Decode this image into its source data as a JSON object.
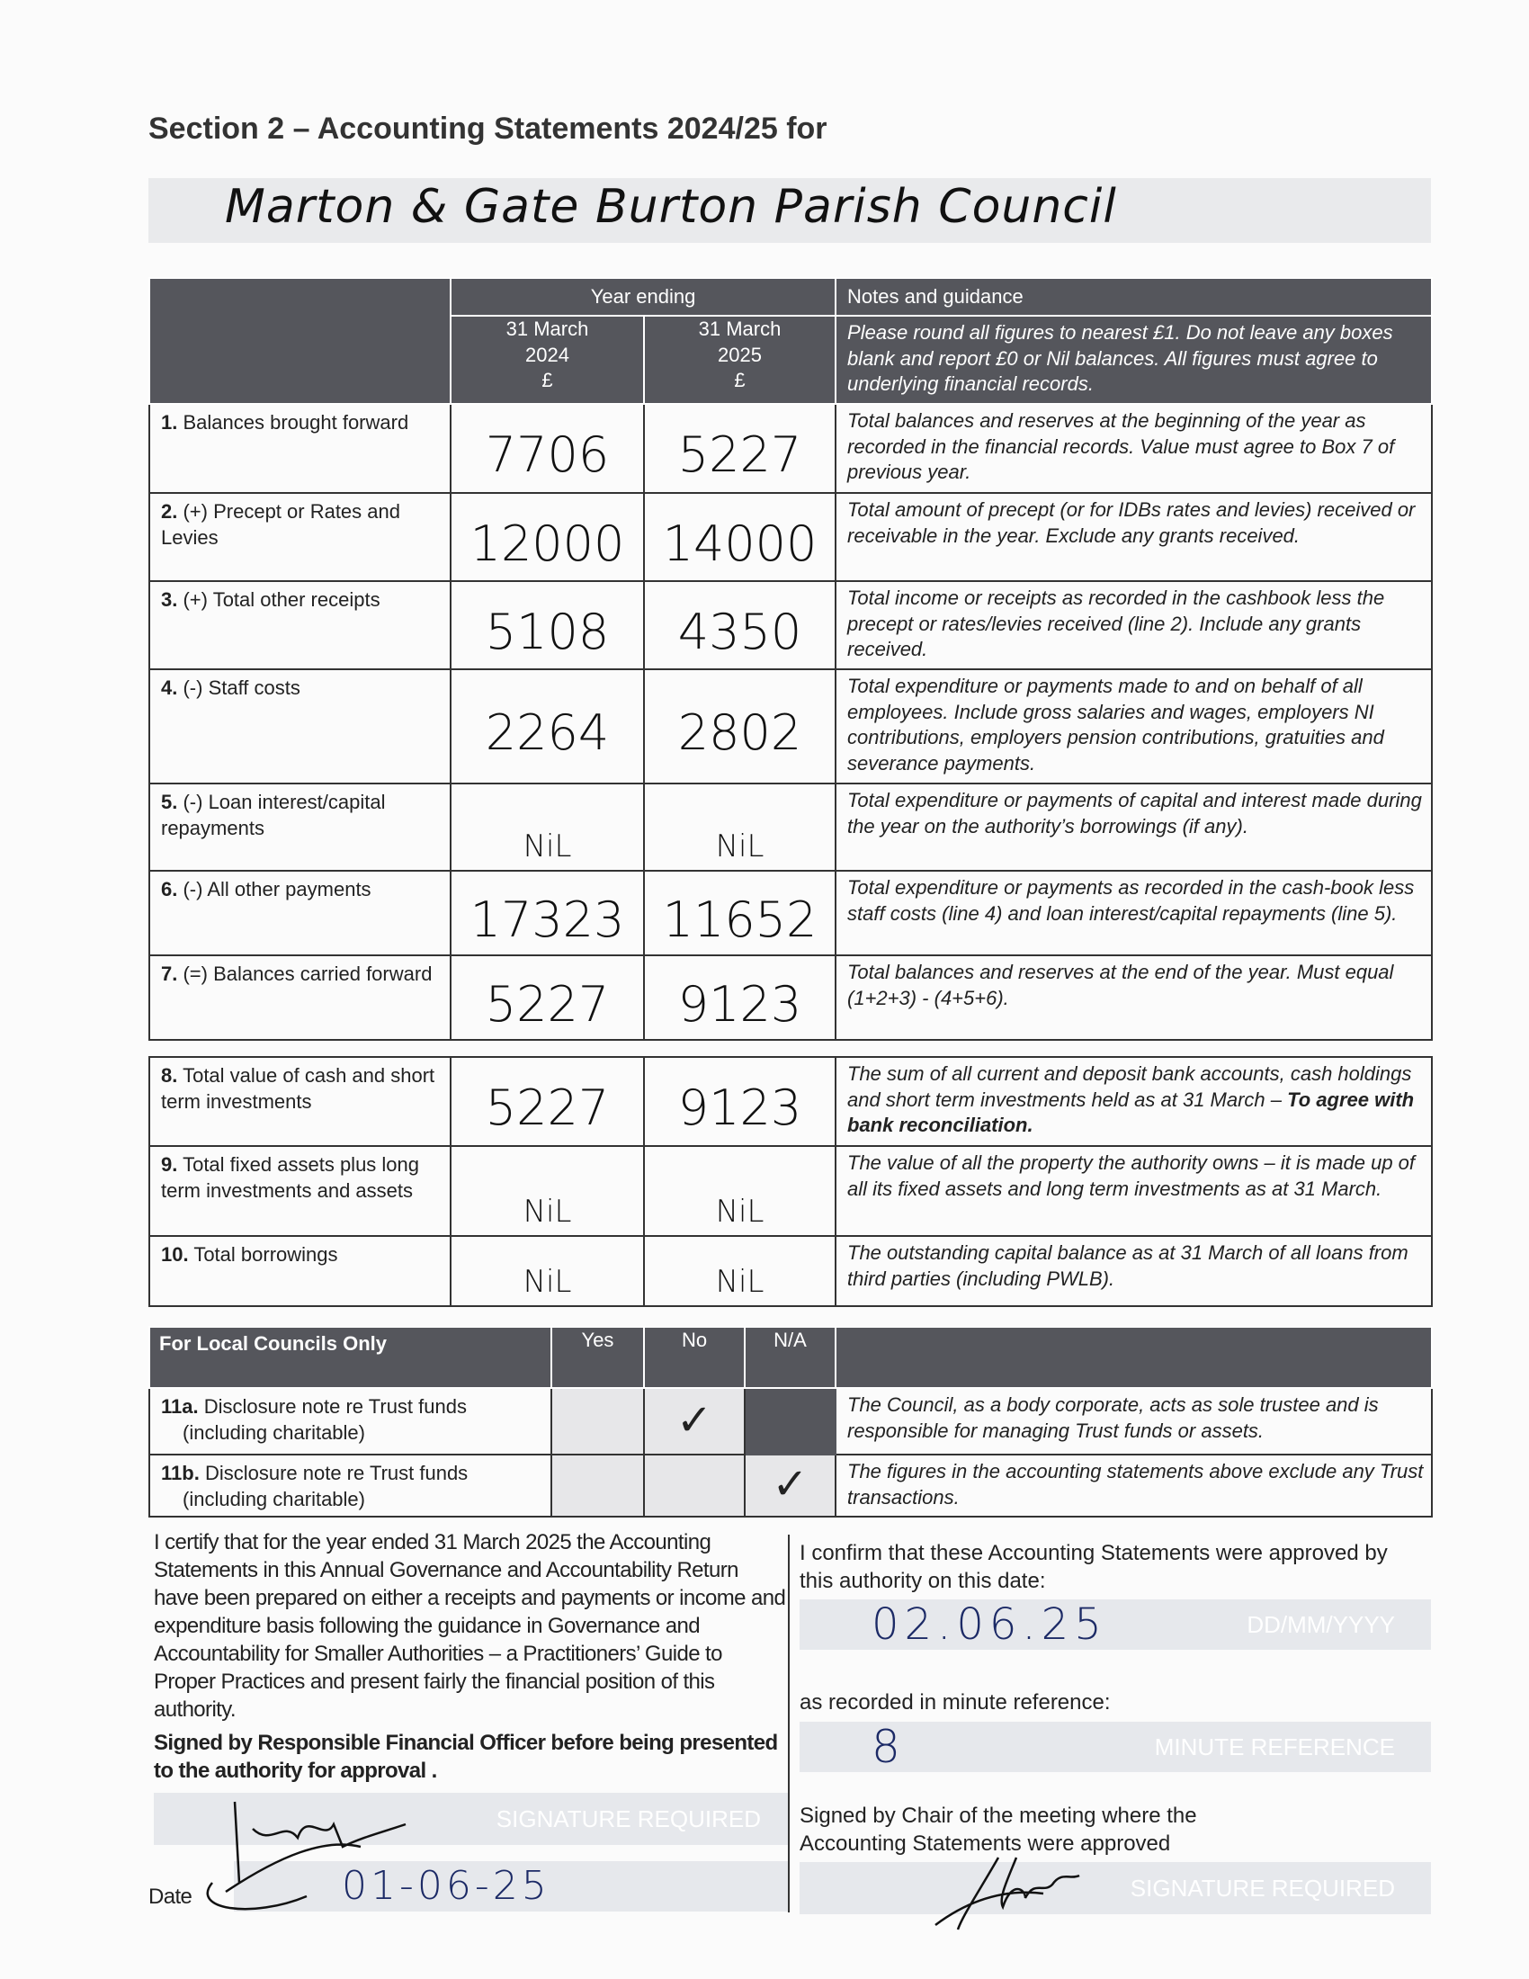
{
  "header": {
    "title": "Section 2 – Accounting Statements 2024/25 for",
    "authority_name": "Marton & Gate Burton Parish Council"
  },
  "statements": {
    "year_ending_label": "Year ending",
    "notes_label": "Notes and guidance",
    "col_2024": [
      "31 March",
      "2024",
      "£"
    ],
    "col_2025": [
      "31 March",
      "2025",
      "£"
    ],
    "general_note": "Please round all figures to nearest £1. Do not leave any boxes blank and report £0 or Nil balances. All figures must agree to underlying financial records.",
    "rows": [
      {
        "num": "1.",
        "label": "Balances brought forward",
        "y2024": "7706",
        "y2025": "5227",
        "note": "Total balances and reserves at the beginning of the year as recorded in the financial records. Value must agree to Box 7 of previous year."
      },
      {
        "num": "2.",
        "label": "(+) Precept or Rates and Levies",
        "y2024": "12000",
        "y2025": "14000",
        "note": "Total amount of precept (or for IDBs rates and levies) received or receivable in the year. Exclude any grants received."
      },
      {
        "num": "3.",
        "label": "(+) Total other receipts",
        "y2024": "5108",
        "y2025": "4350",
        "note": "Total income or receipts as recorded in the cashbook less the precept or rates/levies received (line 2). Include any grants received."
      },
      {
        "num": "4.",
        "label": "(-) Staff costs",
        "y2024": "2264",
        "y2025": "2802",
        "note": "Total expenditure or payments made to and on behalf of all employees. Include gross salaries and wages, employers NI contributions, employers pension contributions, gratuities and severance payments."
      },
      {
        "num": "5.",
        "label": "(-) Loan interest/capital repayments",
        "y2024": "NiL",
        "y2025": "NiL",
        "note": "Total expenditure or payments of capital and interest made during the year on the authority’s borrowings (if any)."
      },
      {
        "num": "6.",
        "label": "(-) All other payments",
        "y2024": "17323",
        "y2025": "11652",
        "note": "Total expenditure or payments as recorded in the cash-book less staff costs (line 4) and loan interest/capital repayments (line 5)."
      },
      {
        "num": "7.",
        "label": "(=) Balances carried forward",
        "y2024": "5227",
        "y2025": "9123",
        "note": "Total balances and reserves at the end of the year. Must equal (1+2+3) - (4+5+6)."
      }
    ],
    "rows2": [
      {
        "num": "8.",
        "label": "Total value of cash and short term investments",
        "y2024": "5227",
        "y2025": "9123",
        "note": "The sum of all current and deposit bank accounts, cash holdings and short term investments held as at 31 March –",
        "note_bold": "To agree with bank reconciliation."
      },
      {
        "num": "9.",
        "label": "Total fixed assets plus long term investments and assets",
        "y2024": "NiL",
        "y2025": "NiL",
        "note": "The value of all the property the authority owns – it is made up of all its fixed assets and long term investments as at 31 March."
      },
      {
        "num": "10.",
        "label": "Total borrowings",
        "y2024": "NiL",
        "y2025": "NiL",
        "note": "The outstanding capital balance as at 31 March of all loans from third parties (including PWLB)."
      }
    ]
  },
  "local_councils": {
    "title": "For Local Councils Only",
    "yes": "Yes",
    "no": "No",
    "na": "N/A",
    "tick": "✓",
    "rows": [
      {
        "num": "11a.",
        "label": "Disclosure note re Trust funds",
        "label2": "(including charitable)",
        "answer": "No",
        "note": "The Council, as a body corporate, acts as sole trustee and is responsible for managing Trust funds or assets."
      },
      {
        "num": "11b.",
        "label": "Disclosure note re Trust funds",
        "label2": "(including charitable)",
        "answer": "N/A",
        "note": "The figures in the accounting statements above exclude any Trust transactions."
      }
    ]
  },
  "certification": {
    "text": "I certify that for the year ended 31 March 2025 the Accounting Statements in this Annual Governance and Accountability Return have been prepared on either a receipts and payments or income and expenditure basis following the guidance in Governance and Accountability for Smaller Authorities – a Practitioners’ Guide to Proper Practices and present fairly the financial position of this authority.",
    "signed_label": "Signed by Responsible Financial Officer before being presented to the authority for approval .",
    "signature_placeholder": "SIGNATURE REQUIRED",
    "date_label": "Date",
    "date_value": "01-06-25"
  },
  "approval": {
    "text": "I confirm that these Accounting Statements were approved by this authority on this date:",
    "date_value": "02.06.25",
    "date_placeholder": "DD/MM/YYYY",
    "minute_label": "as recorded in minute reference:",
    "minute_value": "8",
    "minute_placeholder": "MINUTE REFERENCE",
    "chair_label": "Signed by Chair of the meeting where the Accounting Statements were approved",
    "chair_placeholder": "SIGNATURE REQUIRED"
  }
}
